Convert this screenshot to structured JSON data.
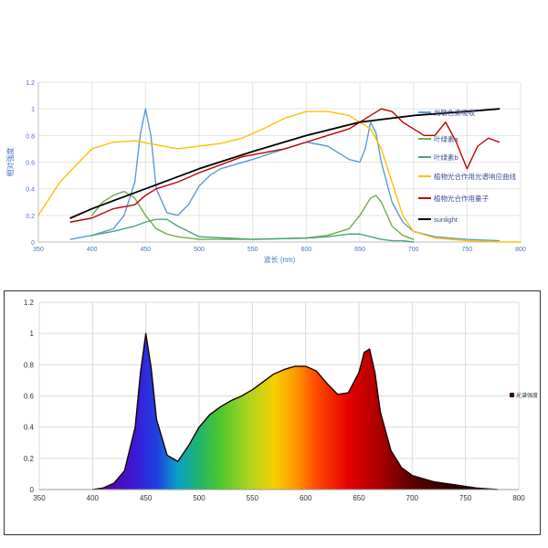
{
  "chart_data": [
    {
      "type": "line",
      "title": "",
      "xlabel": "波长 (nm)",
      "ylabel": "相对强度",
      "xlim": [
        350,
        800
      ],
      "ylim": [
        0,
        1.2
      ],
      "xticks": [
        "350",
        "400",
        "450",
        "500",
        "550",
        "600",
        "650",
        "700",
        "750",
        "800"
      ],
      "yticks": [
        "0",
        "0.2",
        "0.4",
        "0.6",
        "0.8",
        "1",
        "1.2"
      ],
      "legend_position": "right",
      "grid": true,
      "series": [
        {
          "name": "光敏色素吸收",
          "color": "#5b9bd5",
          "x": [
            380,
            400,
            420,
            430,
            440,
            445,
            450,
            455,
            460,
            470,
            480,
            490,
            500,
            510,
            520,
            550,
            580,
            600,
            620,
            640,
            650,
            655,
            660,
            665,
            670,
            680,
            690,
            700,
            720,
            750,
            780
          ],
          "y": [
            0.02,
            0.05,
            0.1,
            0.2,
            0.45,
            0.8,
            1.0,
            0.8,
            0.4,
            0.22,
            0.2,
            0.28,
            0.42,
            0.5,
            0.55,
            0.62,
            0.7,
            0.75,
            0.72,
            0.62,
            0.6,
            0.7,
            0.9,
            0.82,
            0.6,
            0.3,
            0.15,
            0.08,
            0.04,
            0.02,
            0.01
          ]
        },
        {
          "name": "叶绿素a",
          "color": "#70ad47",
          "x": [
            400,
            410,
            420,
            430,
            440,
            450,
            460,
            470,
            480,
            500,
            550,
            600,
            620,
            640,
            650,
            660,
            665,
            670,
            680,
            690,
            700
          ],
          "y": [
            0.2,
            0.3,
            0.35,
            0.38,
            0.33,
            0.2,
            0.1,
            0.06,
            0.04,
            0.02,
            0.02,
            0.03,
            0.05,
            0.1,
            0.2,
            0.33,
            0.35,
            0.3,
            0.12,
            0.05,
            0.02
          ]
        },
        {
          "name": "叶绿素b",
          "color": "#4aa37a",
          "x": [
            400,
            420,
            440,
            450,
            460,
            470,
            480,
            500,
            550,
            600,
            620,
            640,
            650,
            660,
            670,
            680,
            690,
            700
          ],
          "y": [
            0.05,
            0.08,
            0.12,
            0.15,
            0.17,
            0.17,
            0.12,
            0.04,
            0.02,
            0.03,
            0.04,
            0.06,
            0.06,
            0.04,
            0.02,
            0.01,
            0.01,
            0.0
          ]
        },
        {
          "name": "植物光合作用光谱响应曲线",
          "color": "#ffc000",
          "x": [
            350,
            370,
            400,
            420,
            440,
            460,
            480,
            500,
            520,
            540,
            560,
            580,
            600,
            620,
            640,
            650,
            660,
            670,
            680,
            690,
            700,
            720,
            750,
            780,
            800
          ],
          "y": [
            0.2,
            0.45,
            0.7,
            0.75,
            0.76,
            0.73,
            0.7,
            0.72,
            0.74,
            0.78,
            0.85,
            0.93,
            0.98,
            0.98,
            0.95,
            0.9,
            0.85,
            0.7,
            0.45,
            0.2,
            0.08,
            0.03,
            0.01,
            0.0,
            0.0
          ]
        },
        {
          "name": "植物光合作用量子",
          "color": "#c00000",
          "x": [
            380,
            400,
            420,
            440,
            450,
            460,
            480,
            500,
            520,
            540,
            560,
            580,
            600,
            620,
            640,
            650,
            660,
            670,
            680,
            690,
            700,
            710,
            720,
            730,
            740,
            750,
            760,
            770,
            780
          ],
          "y": [
            0.15,
            0.18,
            0.25,
            0.28,
            0.35,
            0.4,
            0.45,
            0.52,
            0.58,
            0.64,
            0.67,
            0.7,
            0.75,
            0.8,
            0.85,
            0.9,
            0.95,
            1.0,
            0.98,
            0.9,
            0.85,
            0.8,
            0.8,
            0.9,
            0.75,
            0.55,
            0.72,
            0.78,
            0.75
          ]
        },
        {
          "name": "sunlight",
          "color": "#000000",
          "x": [
            380,
            400,
            450,
            500,
            550,
            600,
            650,
            700,
            750,
            780
          ],
          "y": [
            0.18,
            0.25,
            0.4,
            0.55,
            0.68,
            0.8,
            0.9,
            0.95,
            0.98,
            1.0
          ]
        }
      ]
    },
    {
      "type": "area",
      "title": "",
      "xlabel": "",
      "ylabel": "",
      "xlim": [
        350,
        800
      ],
      "ylim": [
        0,
        1.2
      ],
      "xticks": [
        "350",
        "400",
        "450",
        "500",
        "550",
        "600",
        "650",
        "700",
        "750",
        "800"
      ],
      "yticks": [
        "0",
        "0.2",
        "0.4",
        "0.6",
        "0.8",
        "1",
        "1.2"
      ],
      "legend_position": "right",
      "grid": true,
      "fill": "visible-spectrum-gradient",
      "series": [
        {
          "name": "光谱强度",
          "color": "#3a0c0c",
          "x": [
            400,
            410,
            420,
            430,
            440,
            445,
            450,
            455,
            460,
            470,
            480,
            490,
            500,
            510,
            520,
            530,
            540,
            550,
            560,
            570,
            580,
            590,
            600,
            610,
            620,
            630,
            640,
            650,
            655,
            660,
            665,
            670,
            680,
            690,
            700,
            720,
            740,
            760,
            780
          ],
          "y": [
            0.0,
            0.01,
            0.04,
            0.12,
            0.4,
            0.75,
            1.0,
            0.78,
            0.45,
            0.22,
            0.18,
            0.28,
            0.4,
            0.48,
            0.53,
            0.57,
            0.6,
            0.64,
            0.69,
            0.74,
            0.77,
            0.79,
            0.79,
            0.76,
            0.68,
            0.61,
            0.62,
            0.75,
            0.88,
            0.9,
            0.75,
            0.5,
            0.25,
            0.14,
            0.09,
            0.05,
            0.03,
            0.01,
            0.0
          ]
        }
      ]
    }
  ]
}
